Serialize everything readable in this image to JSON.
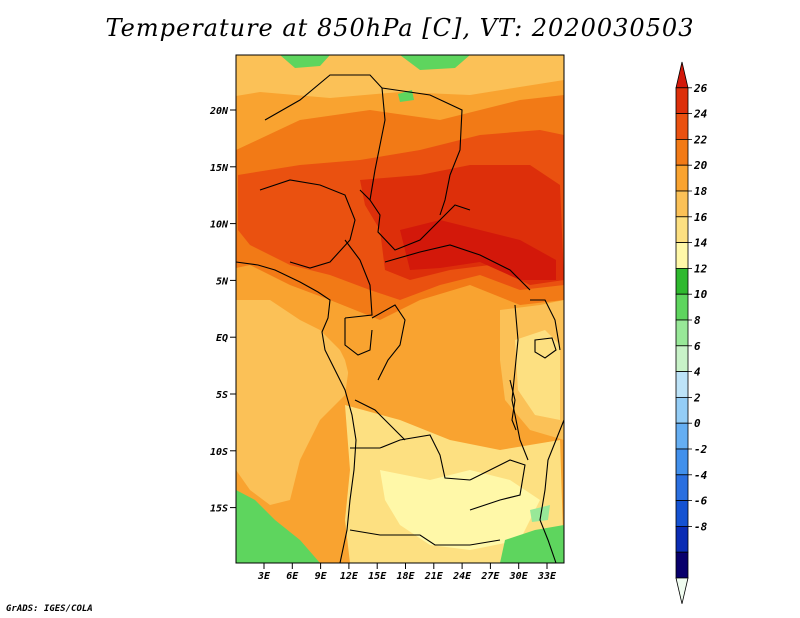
{
  "title": "Temperature at 850hPa [C], VT: 2020030503",
  "credit": "GrADS: IGES/COLA",
  "map": {
    "lat_ticks": [
      "20N",
      "15N",
      "10N",
      "5N",
      "EQ",
      "5S",
      "10S",
      "15S"
    ],
    "lon_ticks": [
      "3E",
      "6E",
      "9E",
      "12E",
      "15E",
      "18E",
      "21E",
      "24E",
      "27E",
      "30E",
      "33E"
    ]
  },
  "colorbar": {
    "levels": [
      "26",
      "24",
      "22",
      "20",
      "18",
      "16",
      "14",
      "12",
      "10",
      "8",
      "6",
      "4",
      "2",
      "0",
      "-2",
      "-4",
      "-6",
      "-8"
    ],
    "colors": [
      "#f0fcf0",
      "#08006c",
      "#0a2cb4",
      "#1452d2",
      "#2a6fe0",
      "#4190ec",
      "#65aef2",
      "#94cdf6",
      "#bde3f8",
      "#c8f2c8",
      "#98e898",
      "#5ed55e",
      "#2eb92e",
      "#fff8a8",
      "#fde081",
      "#fbc157",
      "#f9a330",
      "#f27a16",
      "#ea5110",
      "#dd2f0a",
      "#d3180a"
    ]
  }
}
